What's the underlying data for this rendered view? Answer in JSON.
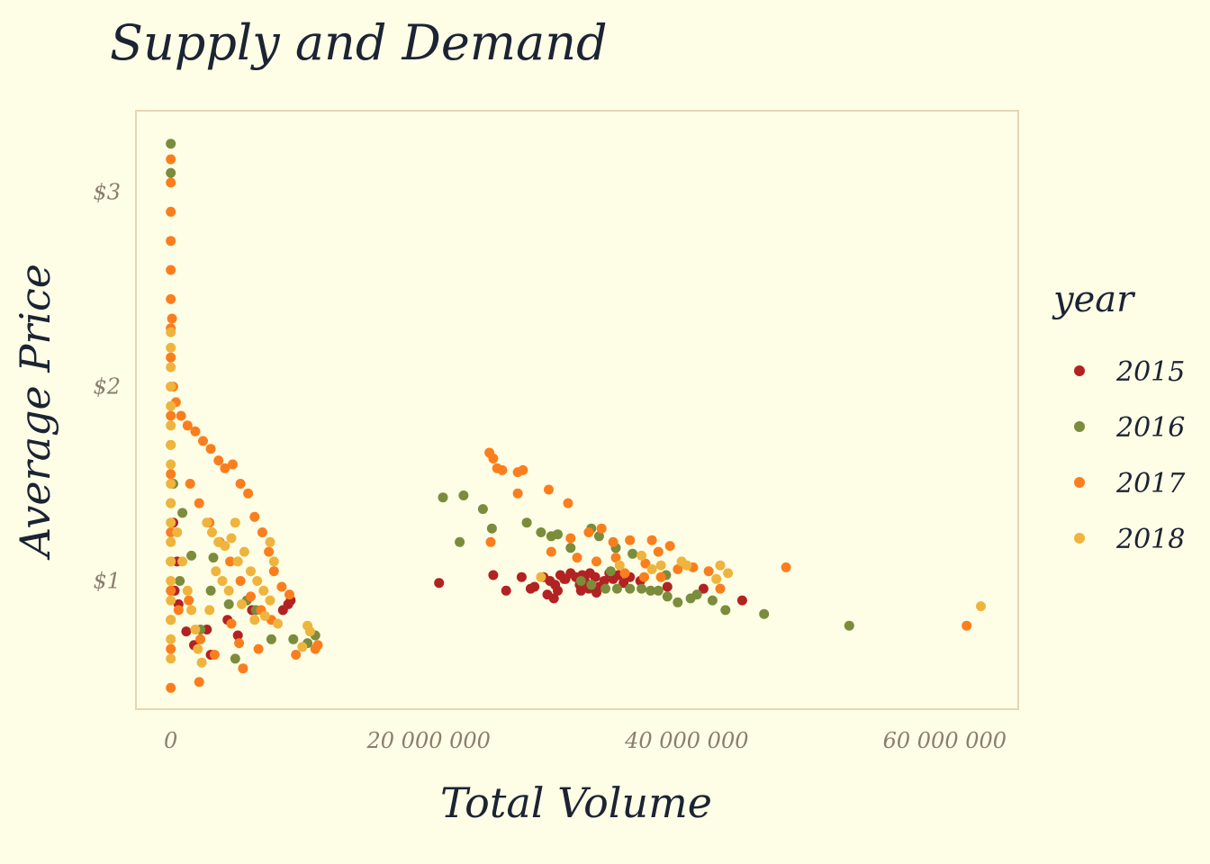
{
  "chart_data": {
    "type": "scatter",
    "title": "Supply and Demand",
    "xlabel": "Total Volume",
    "ylabel": "Average Price",
    "xlim": [
      -2700000,
      65700000
    ],
    "ylim": [
      0.34,
      3.42
    ],
    "x_ticks": [
      {
        "value": 0,
        "label": "0"
      },
      {
        "value": 20000000,
        "label": "20 000 000"
      },
      {
        "value": 40000000,
        "label": "40 000 000"
      },
      {
        "value": 60000000,
        "label": "60 000 000"
      }
    ],
    "y_ticks": [
      {
        "value": 1,
        "label": "$1"
      },
      {
        "value": 2,
        "label": "$2"
      },
      {
        "value": 3,
        "label": "$3"
      }
    ],
    "legend": {
      "title": "year",
      "position": "right"
    },
    "grid": false,
    "series": [
      {
        "name": "2015",
        "color": "#b22222",
        "points": [
          [
            20800000,
            0.99
          ],
          [
            25000000,
            1.03
          ],
          [
            26000000,
            0.95
          ],
          [
            27200000,
            1.02
          ],
          [
            28200000,
            0.97
          ],
          [
            28900000,
            1.02
          ],
          [
            29400000,
            1.0
          ],
          [
            29800000,
            0.98
          ],
          [
            30200000,
            1.03
          ],
          [
            30600000,
            1.01
          ],
          [
            31000000,
            1.04
          ],
          [
            31400000,
            1.02
          ],
          [
            31700000,
            0.98
          ],
          [
            32100000,
            1.0
          ],
          [
            32500000,
            1.04
          ],
          [
            32900000,
            1.02
          ],
          [
            33200000,
            0.97
          ],
          [
            33600000,
            1.0
          ],
          [
            34000000,
            1.04
          ],
          [
            34300000,
            1.01
          ],
          [
            34700000,
            1.03
          ],
          [
            35100000,
            0.99
          ],
          [
            35600000,
            1.02
          ],
          [
            29200000,
            0.93
          ],
          [
            29700000,
            0.91
          ],
          [
            30000000,
            0.95
          ],
          [
            31800000,
            0.95
          ],
          [
            32400000,
            0.96
          ],
          [
            33000000,
            0.94
          ],
          [
            36400000,
            1.0
          ],
          [
            38500000,
            0.97
          ],
          [
            41300000,
            0.96
          ],
          [
            44300000,
            0.9
          ],
          [
            27900000,
            0.96
          ],
          [
            30500000,
            1.01
          ],
          [
            31900000,
            1.03
          ],
          [
            300000,
            0.95
          ],
          [
            600000,
            0.88
          ],
          [
            1200000,
            0.74
          ],
          [
            2800000,
            0.75
          ],
          [
            4400000,
            0.8
          ],
          [
            6300000,
            0.85
          ],
          [
            8700000,
            0.85
          ],
          [
            9300000,
            0.9
          ],
          [
            200000,
            1.3
          ],
          [
            500000,
            1.1
          ],
          [
            1800000,
            0.67
          ],
          [
            3100000,
            0.62
          ],
          [
            5200000,
            0.72
          ],
          [
            9100000,
            0.88
          ]
        ]
      },
      {
        "name": "2016",
        "color": "#7b8c3c",
        "points": [
          [
            21100000,
            1.43
          ],
          [
            22700000,
            1.44
          ],
          [
            22400000,
            1.2
          ],
          [
            24200000,
            1.37
          ],
          [
            24900000,
            1.27
          ],
          [
            27600000,
            1.3
          ],
          [
            28700000,
            1.25
          ],
          [
            29500000,
            1.23
          ],
          [
            30000000,
            1.24
          ],
          [
            31000000,
            1.17
          ],
          [
            32600000,
            1.27
          ],
          [
            33200000,
            1.23
          ],
          [
            34500000,
            1.17
          ],
          [
            35800000,
            1.14
          ],
          [
            31800000,
            1.0
          ],
          [
            32600000,
            0.98
          ],
          [
            33700000,
            0.96
          ],
          [
            34600000,
            0.96
          ],
          [
            35600000,
            0.96
          ],
          [
            36500000,
            0.96
          ],
          [
            37200000,
            0.95
          ],
          [
            37800000,
            0.95
          ],
          [
            38500000,
            0.92
          ],
          [
            39300000,
            0.89
          ],
          [
            40300000,
            0.91
          ],
          [
            40800000,
            0.93
          ],
          [
            42000000,
            0.9
          ],
          [
            43000000,
            0.85
          ],
          [
            46000000,
            0.83
          ],
          [
            52600000,
            0.77
          ],
          [
            34100000,
            1.05
          ],
          [
            38400000,
            1.03
          ],
          [
            0,
            3.25
          ],
          [
            0,
            3.1
          ],
          [
            200000,
            1.5
          ],
          [
            900000,
            1.35
          ],
          [
            1600000,
            1.13
          ],
          [
            2300000,
            0.75
          ],
          [
            3100000,
            0.95
          ],
          [
            4500000,
            0.88
          ],
          [
            5000000,
            0.6
          ],
          [
            5900000,
            0.9
          ],
          [
            6600000,
            0.85
          ],
          [
            7800000,
            0.7
          ],
          [
            9500000,
            0.7
          ],
          [
            10600000,
            0.68
          ],
          [
            11200000,
            0.72
          ],
          [
            700000,
            1.0
          ],
          [
            3300000,
            1.12
          ]
        ]
      },
      {
        "name": "2017",
        "color": "#fb7e1e",
        "points": [
          [
            0,
            3.17
          ],
          [
            0,
            3.05
          ],
          [
            0,
            2.9
          ],
          [
            0,
            2.75
          ],
          [
            0,
            2.6
          ],
          [
            0,
            2.45
          ],
          [
            0,
            2.3
          ],
          [
            0,
            2.15
          ],
          [
            0,
            2.0
          ],
          [
            0,
            1.85
          ],
          [
            0,
            1.7
          ],
          [
            0,
            1.55
          ],
          [
            0,
            1.4
          ],
          [
            0,
            1.25
          ],
          [
            0,
            1.1
          ],
          [
            0,
            0.95
          ],
          [
            0,
            0.8
          ],
          [
            0,
            0.65
          ],
          [
            0,
            0.45
          ],
          [
            100000,
            2.35
          ],
          [
            200000,
            2.0
          ],
          [
            400000,
            1.92
          ],
          [
            800000,
            1.85
          ],
          [
            1300000,
            1.8
          ],
          [
            1900000,
            1.77
          ],
          [
            2500000,
            1.72
          ],
          [
            3100000,
            1.68
          ],
          [
            3700000,
            1.62
          ],
          [
            4200000,
            1.58
          ],
          [
            4800000,
            1.6
          ],
          [
            5400000,
            1.5
          ],
          [
            6000000,
            1.45
          ],
          [
            6500000,
            1.33
          ],
          [
            7100000,
            1.25
          ],
          [
            7600000,
            1.15
          ],
          [
            8000000,
            1.05
          ],
          [
            8600000,
            0.97
          ],
          [
            9200000,
            0.93
          ],
          [
            1500000,
            1.5
          ],
          [
            2200000,
            1.4
          ],
          [
            3000000,
            1.3
          ],
          [
            3800000,
            1.2
          ],
          [
            4600000,
            1.1
          ],
          [
            5400000,
            1.0
          ],
          [
            6200000,
            0.92
          ],
          [
            7000000,
            0.85
          ],
          [
            7800000,
            0.8
          ],
          [
            600000,
            0.85
          ],
          [
            1400000,
            0.9
          ],
          [
            2300000,
            0.7
          ],
          [
            3400000,
            0.62
          ],
          [
            4700000,
            0.78
          ],
          [
            5300000,
            0.68
          ],
          [
            5600000,
            0.55
          ],
          [
            6800000,
            0.65
          ],
          [
            9700000,
            0.62
          ],
          [
            11200000,
            0.65
          ],
          [
            11400000,
            0.67
          ],
          [
            2200000,
            0.48
          ],
          [
            24700000,
            1.66
          ],
          [
            25000000,
            1.63
          ],
          [
            25300000,
            1.58
          ],
          [
            25700000,
            1.57
          ],
          [
            26900000,
            1.56
          ],
          [
            27300000,
            1.57
          ],
          [
            26900000,
            1.45
          ],
          [
            29300000,
            1.47
          ],
          [
            30800000,
            1.4
          ],
          [
            24800000,
            1.2
          ],
          [
            32400000,
            1.25
          ],
          [
            33400000,
            1.27
          ],
          [
            31000000,
            1.22
          ],
          [
            34300000,
            1.2
          ],
          [
            35600000,
            1.21
          ],
          [
            37300000,
            1.21
          ],
          [
            38700000,
            1.18
          ],
          [
            29500000,
            1.15
          ],
          [
            31500000,
            1.12
          ],
          [
            33000000,
            1.1
          ],
          [
            34500000,
            1.12
          ],
          [
            36800000,
            1.09
          ],
          [
            39300000,
            1.06
          ],
          [
            40500000,
            1.07
          ],
          [
            41700000,
            1.05
          ],
          [
            35200000,
            1.04
          ],
          [
            36700000,
            1.02
          ],
          [
            38000000,
            1.02
          ],
          [
            42600000,
            0.96
          ],
          [
            47700000,
            1.07
          ],
          [
            61700000,
            0.77
          ],
          [
            37800000,
            1.15
          ]
        ]
      },
      {
        "name": "2018",
        "color": "#efb43e",
        "points": [
          [
            0,
            2.28
          ],
          [
            0,
            2.2
          ],
          [
            0,
            2.1
          ],
          [
            0,
            2.0
          ],
          [
            0,
            1.9
          ],
          [
            0,
            1.8
          ],
          [
            0,
            1.7
          ],
          [
            0,
            1.6
          ],
          [
            0,
            1.5
          ],
          [
            0,
            1.4
          ],
          [
            0,
            1.3
          ],
          [
            0,
            1.2
          ],
          [
            0,
            1.1
          ],
          [
            0,
            1.0
          ],
          [
            0,
            0.9
          ],
          [
            0,
            0.8
          ],
          [
            0,
            0.7
          ],
          [
            0,
            0.6
          ],
          [
            500000,
            1.25
          ],
          [
            900000,
            1.1
          ],
          [
            1300000,
            0.95
          ],
          [
            1600000,
            0.85
          ],
          [
            1900000,
            0.75
          ],
          [
            2100000,
            0.65
          ],
          [
            2400000,
            0.58
          ],
          [
            2800000,
            1.3
          ],
          [
            3200000,
            1.25
          ],
          [
            3700000,
            1.2
          ],
          [
            4200000,
            1.18
          ],
          [
            4700000,
            1.22
          ],
          [
            5200000,
            1.1
          ],
          [
            5700000,
            1.15
          ],
          [
            6200000,
            1.05
          ],
          [
            6700000,
            1.0
          ],
          [
            7200000,
            0.95
          ],
          [
            7700000,
            0.9
          ],
          [
            3500000,
            1.05
          ],
          [
            4000000,
            1.0
          ],
          [
            4500000,
            0.95
          ],
          [
            5500000,
            0.88
          ],
          [
            6500000,
            0.8
          ],
          [
            7300000,
            0.82
          ],
          [
            7700000,
            1.2
          ],
          [
            8000000,
            1.1
          ],
          [
            8300000,
            0.78
          ],
          [
            10200000,
            0.66
          ],
          [
            10600000,
            0.77
          ],
          [
            10800000,
            0.74
          ],
          [
            5000000,
            1.3
          ],
          [
            3000000,
            0.85
          ],
          [
            28700000,
            1.02
          ],
          [
            34800000,
            1.08
          ],
          [
            36500000,
            1.13
          ],
          [
            37300000,
            1.06
          ],
          [
            38000000,
            1.08
          ],
          [
            39600000,
            1.1
          ],
          [
            40000000,
            1.08
          ],
          [
            42600000,
            1.08
          ],
          [
            43200000,
            1.04
          ],
          [
            42300000,
            1.01
          ],
          [
            62800000,
            0.87
          ]
        ]
      }
    ]
  }
}
